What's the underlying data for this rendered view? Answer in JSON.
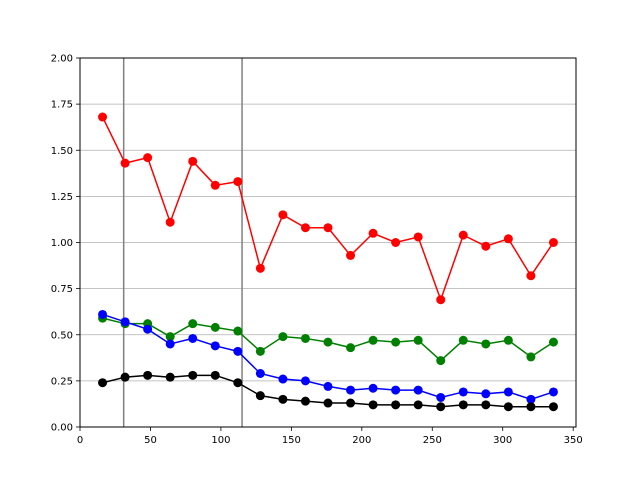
{
  "chart_data": {
    "type": "line",
    "title": "",
    "xlabel": "",
    "ylabel": "",
    "xlim": [
      0,
      352
    ],
    "ylim": [
      0,
      2.0
    ],
    "x_ticks": [
      0,
      50,
      100,
      150,
      200,
      250,
      300,
      350
    ],
    "x_tick_labels": [
      "0",
      "50",
      "100",
      "150",
      "200",
      "250",
      "300",
      "350"
    ],
    "y_ticks": [
      0.0,
      0.25,
      0.5,
      0.75,
      1.0,
      1.25,
      1.5,
      1.75,
      2.0
    ],
    "y_tick_labels": [
      "0.00",
      "0.25",
      "0.50",
      "0.75",
      "1.00",
      "1.25",
      "1.50",
      "1.75",
      "2.00"
    ],
    "grid": "horizontal",
    "vertical_lines": [
      31,
      115
    ],
    "x": [
      16,
      32,
      48,
      64,
      80,
      96,
      112,
      128,
      144,
      160,
      176,
      192,
      208,
      224,
      240,
      256,
      272,
      288,
      304,
      320,
      336
    ],
    "series": [
      {
        "color": "#ff0000",
        "values": [
          1.68,
          1.43,
          1.46,
          1.11,
          1.44,
          1.31,
          1.33,
          0.86,
          1.15,
          1.08,
          1.08,
          0.93,
          1.05,
          1.0,
          1.03,
          0.69,
          1.04,
          0.98,
          1.02,
          0.82,
          1.0
        ]
      },
      {
        "color": "#008000",
        "values": [
          0.59,
          0.56,
          0.56,
          0.49,
          0.56,
          0.54,
          0.52,
          0.41,
          0.49,
          0.48,
          0.46,
          0.43,
          0.47,
          0.46,
          0.47,
          0.36,
          0.47,
          0.45,
          0.47,
          0.38,
          0.46
        ]
      },
      {
        "color": "#0000ff",
        "values": [
          0.61,
          0.57,
          0.53,
          0.45,
          0.48,
          0.44,
          0.41,
          0.29,
          0.26,
          0.25,
          0.22,
          0.2,
          0.21,
          0.2,
          0.2,
          0.16,
          0.19,
          0.18,
          0.19,
          0.15,
          0.19
        ]
      },
      {
        "color": "#000000",
        "values": [
          0.24,
          0.27,
          0.28,
          0.27,
          0.28,
          0.28,
          0.24,
          0.17,
          0.15,
          0.14,
          0.13,
          0.13,
          0.12,
          0.12,
          0.12,
          0.11,
          0.12,
          0.12,
          0.11,
          0.11,
          0.11
        ]
      }
    ],
    "reference_line_color": "#808080",
    "grid_color": "#b0b0b0"
  }
}
